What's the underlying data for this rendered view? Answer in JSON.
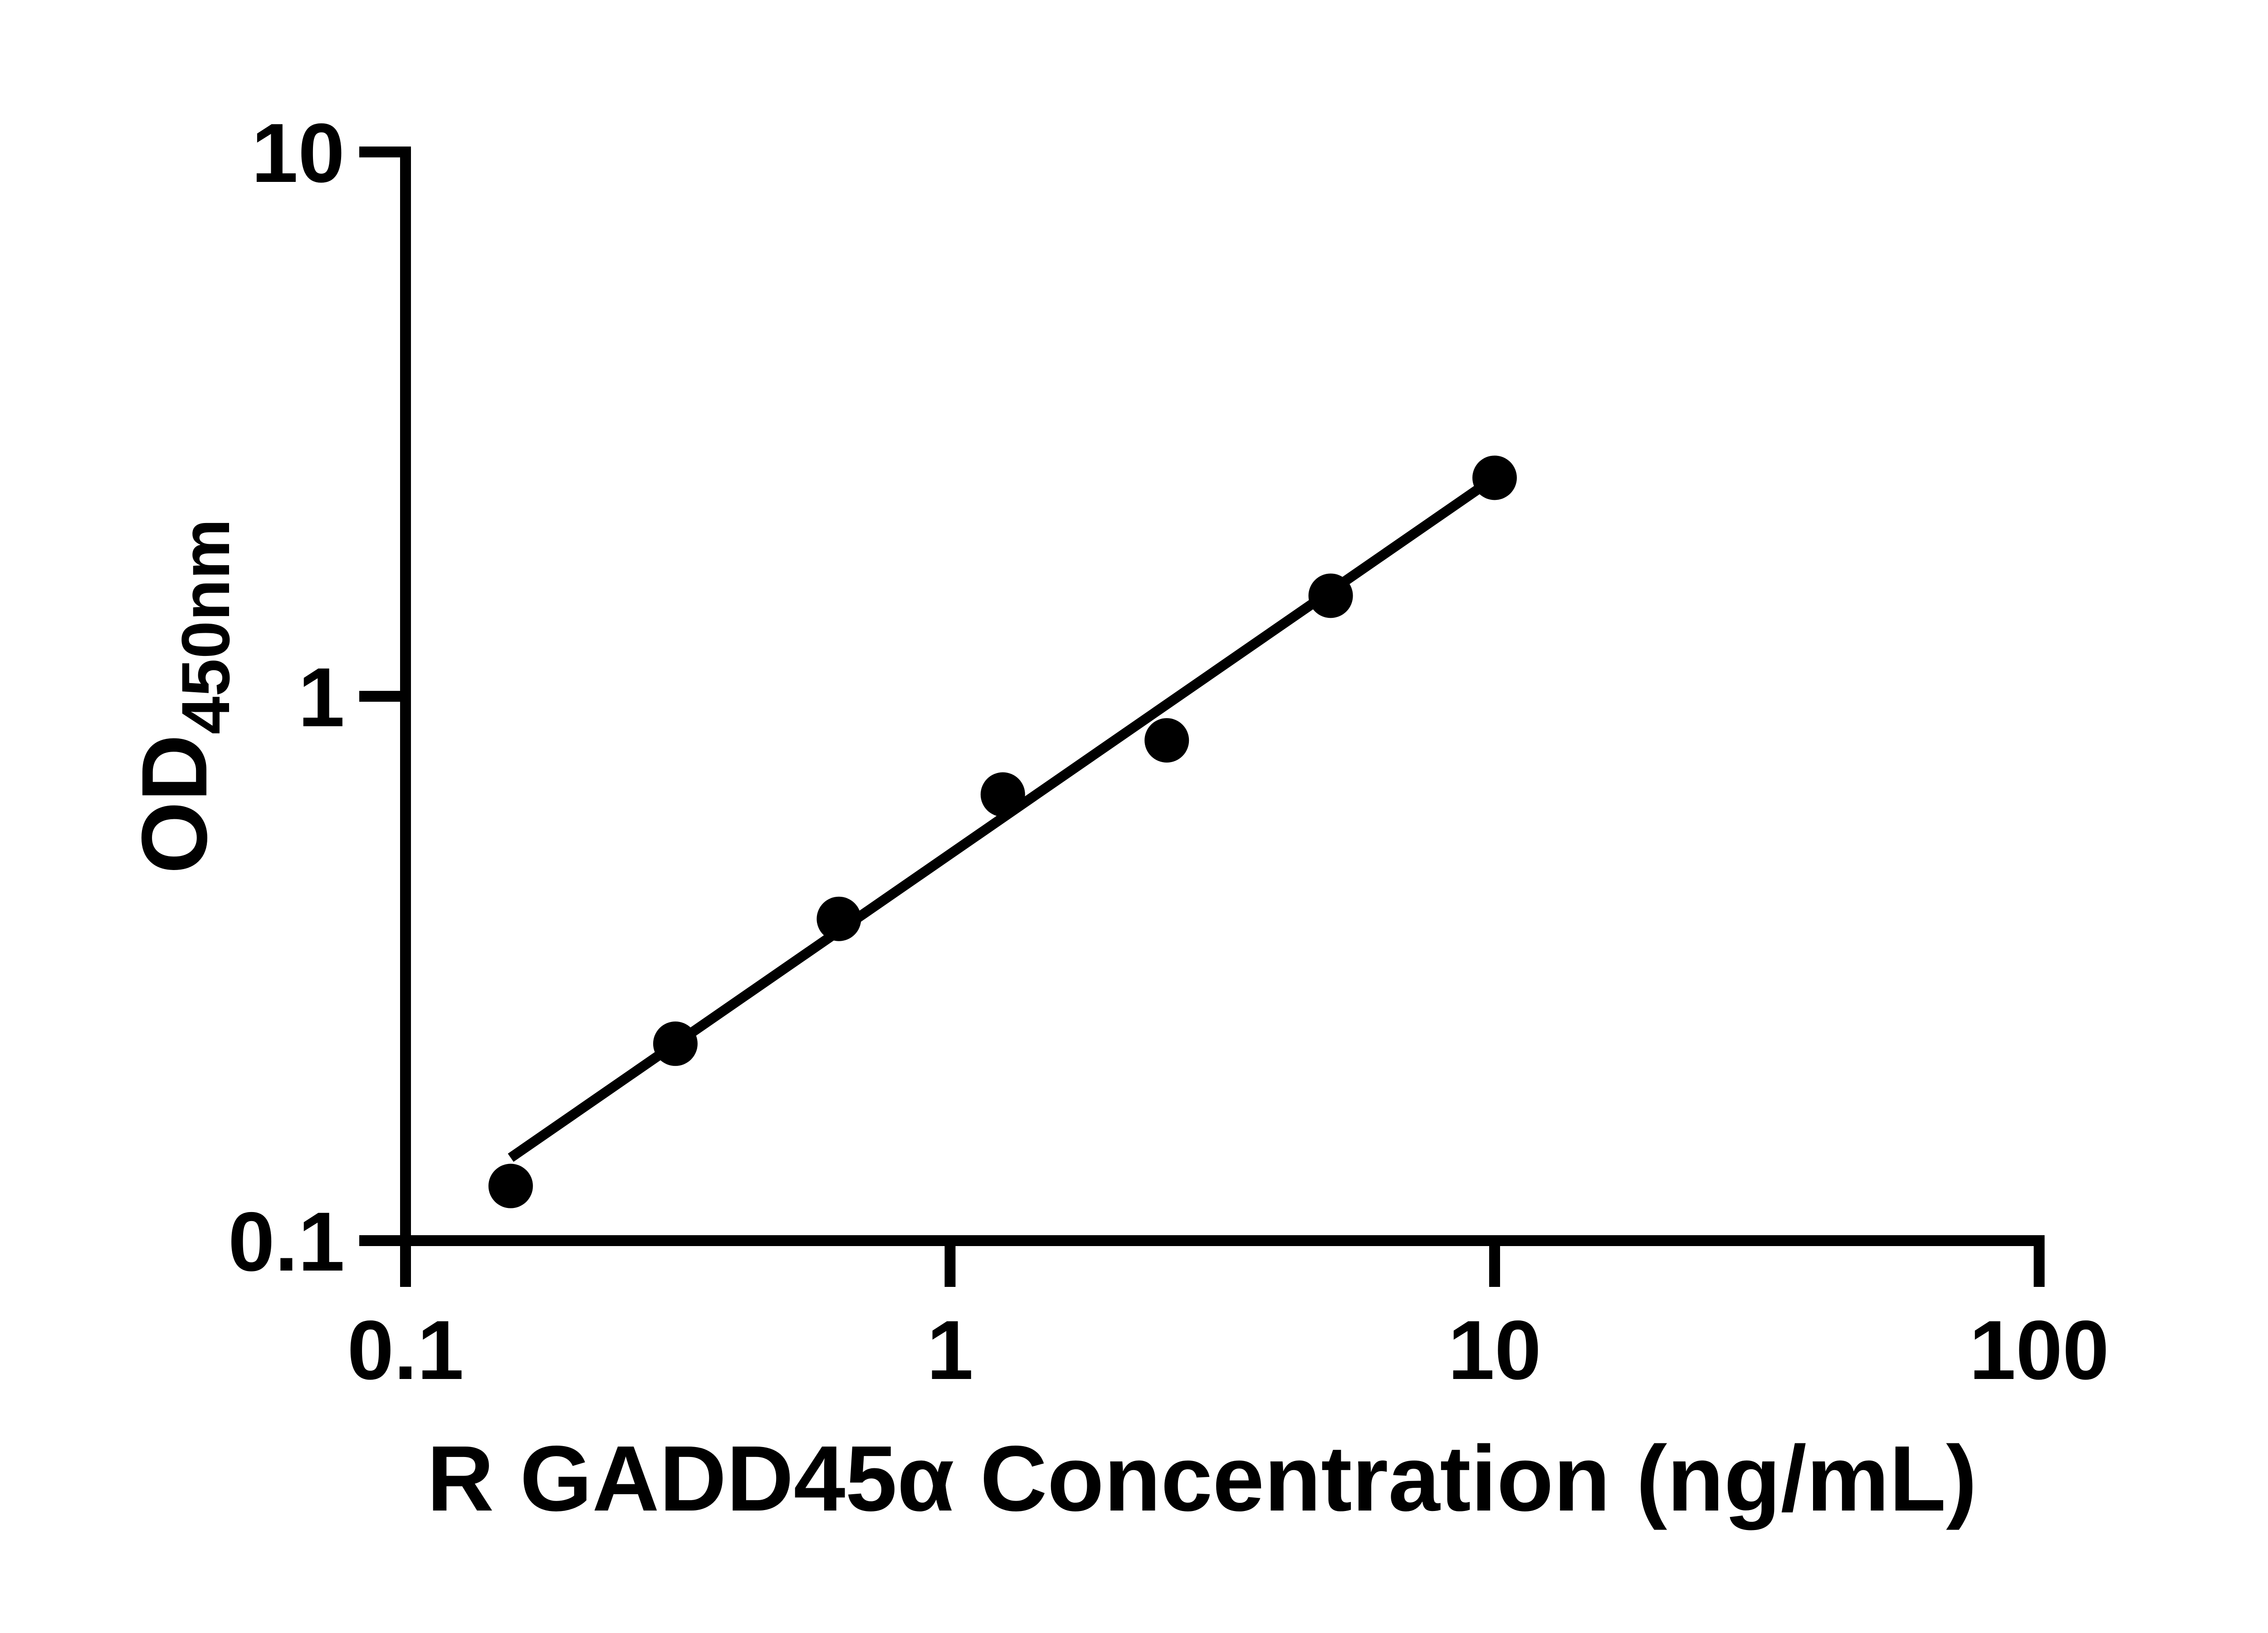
{
  "figure": {
    "background_color": "#ffffff",
    "foreground_color": "#000000"
  },
  "chart_data": {
    "type": "scatter",
    "title": "",
    "xlabel": "R GADD45α Concentration (ng/mL)",
    "ylabel_main": "OD",
    "ylabel_subscript": "450nm",
    "x_scale": "log10",
    "y_scale": "log10",
    "xlim": [
      0.1,
      100
    ],
    "ylim": [
      0.1,
      10
    ],
    "x_ticks": [
      0.1,
      1,
      10,
      100
    ],
    "x_tick_labels": [
      "0.1",
      "1",
      "10",
      "100"
    ],
    "y_ticks": [
      0.1,
      1,
      10
    ],
    "y_tick_labels": [
      "0.1",
      "1",
      "10"
    ],
    "grid": false,
    "legend_position": "none",
    "series": [
      {
        "name": "standard-curve-points",
        "marker": "filled-circle",
        "color": "#000000",
        "points": [
          {
            "x": 0.156,
            "y": 0.126
          },
          {
            "x": 0.313,
            "y": 0.23
          },
          {
            "x": 0.625,
            "y": 0.39
          },
          {
            "x": 1.25,
            "y": 0.66
          },
          {
            "x": 2.5,
            "y": 0.83
          },
          {
            "x": 5,
            "y": 1.53
          },
          {
            "x": 10,
            "y": 2.52
          }
        ]
      }
    ],
    "trend_line": {
      "x1": 0.156,
      "y1": 0.142,
      "x2": 10,
      "y2": 2.52,
      "color": "#000000"
    }
  }
}
